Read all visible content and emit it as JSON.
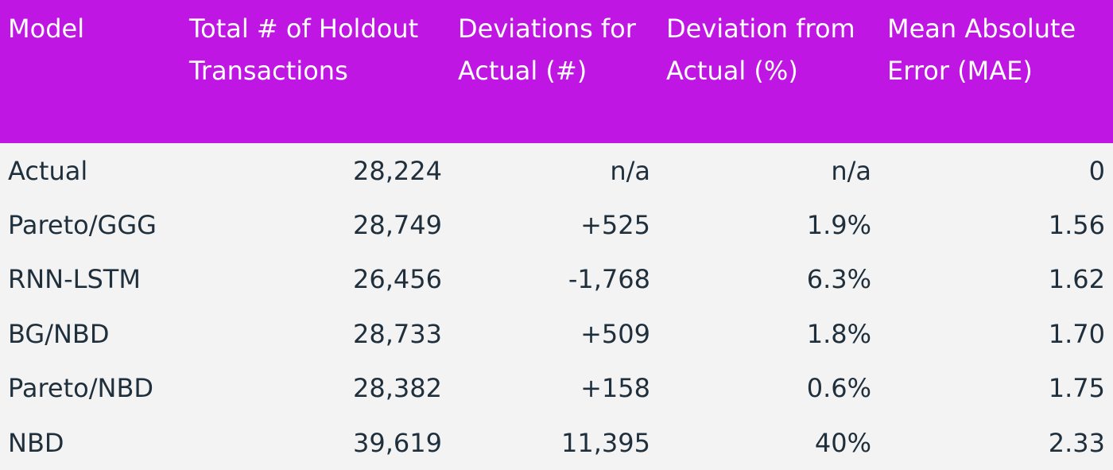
{
  "table": {
    "headers": [
      "Model",
      "Total # of Holdout Transactions",
      "Deviations for Actual (#)",
      "Deviation from Actual (%)",
      "Mean Absolute Error (MAE)"
    ],
    "rows": [
      [
        "Actual",
        "28,224",
        "n/a",
        "n/a",
        "0"
      ],
      [
        "Pareto/GGG",
        "28,749",
        "+525",
        "1.9%",
        "1.56"
      ],
      [
        "RNN-LSTM",
        "26,456",
        "-1,768",
        "6.3%",
        "1.62"
      ],
      [
        "BG/NBD",
        "28,733",
        "+509",
        "1.8%",
        "1.70"
      ],
      [
        "Pareto/NBD",
        "28,382",
        "+158",
        "0.6%",
        "1.75"
      ],
      [
        "NBD",
        "39,619",
        "11,395",
        "40%",
        "2.33"
      ]
    ]
  },
  "colors": {
    "header_bg": "#c016e3",
    "header_text": "#ffffff",
    "body_bg": "#f3f3f3",
    "body_text": "#1f2f3c"
  }
}
